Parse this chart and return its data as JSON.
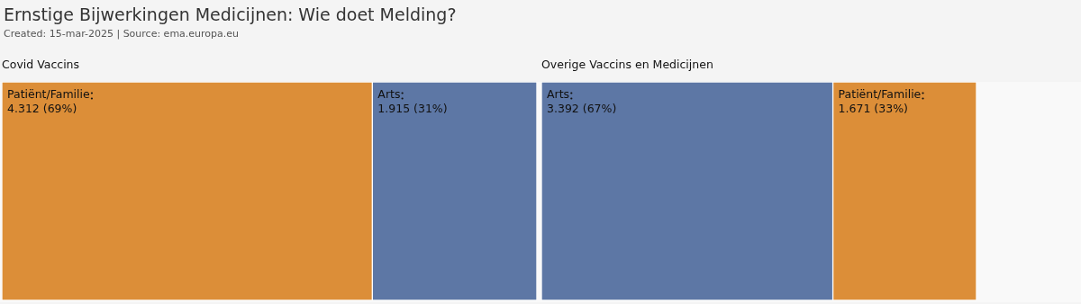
{
  "chart_data": [
    {
      "type": "other",
      "title": "Ernstige Bijwerkingen Medicijnen: Wie doet Melding?",
      "subtitle": "Created: 15-mar-2025 | Source: ema.europa.eu"
    },
    {
      "type": "other",
      "title": "Covid Vaccins",
      "categories": [
        "Patiënt/Familie",
        "Arts"
      ],
      "values": [
        4312,
        1915
      ],
      "colors": [
        "#dc8e38",
        "#5d77a5"
      ],
      "value_labels": [
        "4.312 (69%)",
        "1.915 (31%)"
      ]
    },
    {
      "type": "other",
      "title": "Overige Vaccins en Medicijnen",
      "categories": [
        "Arts",
        "Patiënt/Familie"
      ],
      "values": [
        3392,
        1671
      ],
      "colors": [
        "#5d77a5",
        "#dc8e38"
      ],
      "value_labels": [
        "3.392 (67%)",
        "1.671 (33%)"
      ]
    }
  ]
}
